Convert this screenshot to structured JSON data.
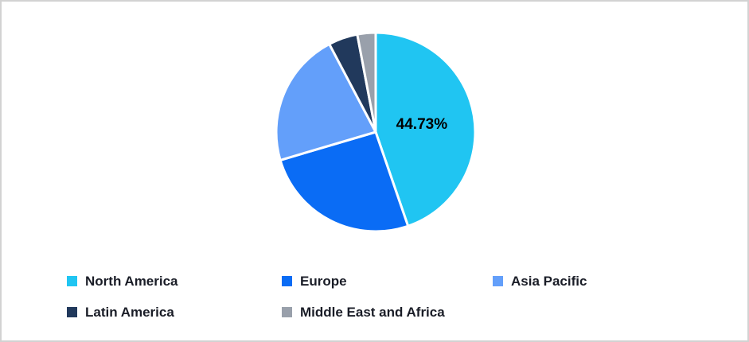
{
  "chart_data": {
    "type": "pie",
    "categories": [
      "North America",
      "Europe",
      "Asia Pacific",
      "Latin America",
      "Middle East and Africa"
    ],
    "values": [
      44.73,
      25.7,
      21.85,
      4.75,
      2.97
    ],
    "colors": [
      "#20C5F2",
      "#0A6CF5",
      "#639FFA",
      "#21395C",
      "#99A0AB"
    ],
    "slice_labels": [
      "44.73%",
      "",
      "",
      "",
      ""
    ],
    "start_angle_deg": 0,
    "direction": "clockwise",
    "legend_position": "bottom",
    "slice_label_color": "#000000",
    "slice_separator_color": "#FFFFFF",
    "legend_text_color": "#1A1D27",
    "page_border_color": "#D2D2D2"
  }
}
